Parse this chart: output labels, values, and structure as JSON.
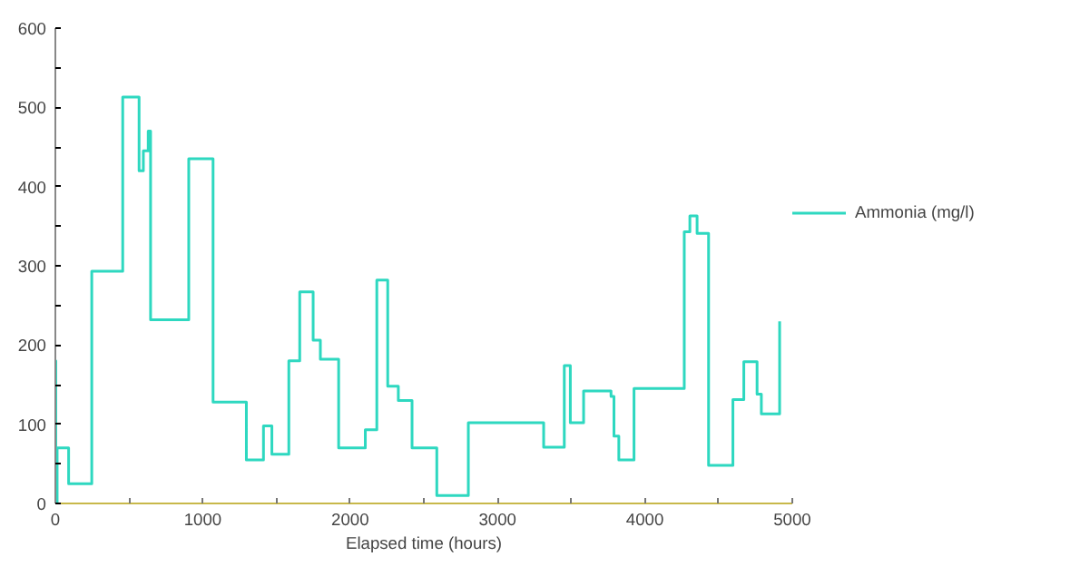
{
  "chart_data": {
    "type": "step",
    "xlabel": "Elapsed time (hours)",
    "x": [
      0,
      3,
      12,
      90,
      247,
      457,
      568,
      597,
      630,
      646,
      905,
      1070,
      1296,
      1412,
      1469,
      1584,
      1658,
      1749,
      1798,
      1922,
      2103,
      2181,
      2255,
      2327,
      2420,
      2588,
      2802,
      3313,
      3453,
      3494,
      3584,
      3770,
      3790,
      3823,
      3926,
      4267,
      4305,
      4354,
      4432,
      4597,
      4671,
      4761,
      4790,
      4914
    ],
    "series": [
      {
        "name": "Ammonia (mg/l)",
        "color": "#2ed8c0",
        "values": [
          180,
          0,
          70,
          25,
          293,
          513,
          420,
          445,
          470,
          232,
          435,
          128,
          55,
          98,
          62,
          180,
          267,
          206,
          182,
          70,
          93,
          282,
          148,
          130,
          70,
          10,
          102,
          71,
          174,
          102,
          142,
          135,
          85,
          55,
          145,
          343,
          363,
          341,
          48,
          131,
          179,
          138,
          113,
          230
        ]
      }
    ],
    "xlim": [
      0,
      5000
    ],
    "ylim": [
      0,
      600
    ],
    "xticks": [
      0,
      {
        "value": 500,
        "label": null
      },
      1000,
      {
        "value": 1500,
        "label": null
      },
      2000,
      {
        "value": 2500,
        "label": null
      },
      3000,
      {
        "value": 3500,
        "label": null
      },
      4000,
      {
        "value": 4500,
        "label": null
      },
      5000
    ],
    "yticks": [
      0,
      {
        "value": 50,
        "label": null
      },
      100,
      {
        "value": 150,
        "label": null
      },
      200,
      {
        "value": 250,
        "label": null
      },
      300,
      {
        "value": 350,
        "label": null
      },
      400,
      {
        "value": 450,
        "label": null
      },
      500,
      {
        "value": 550,
        "label": null
      },
      600
    ],
    "grid": false,
    "legend": "right",
    "line_style": "solid"
  }
}
